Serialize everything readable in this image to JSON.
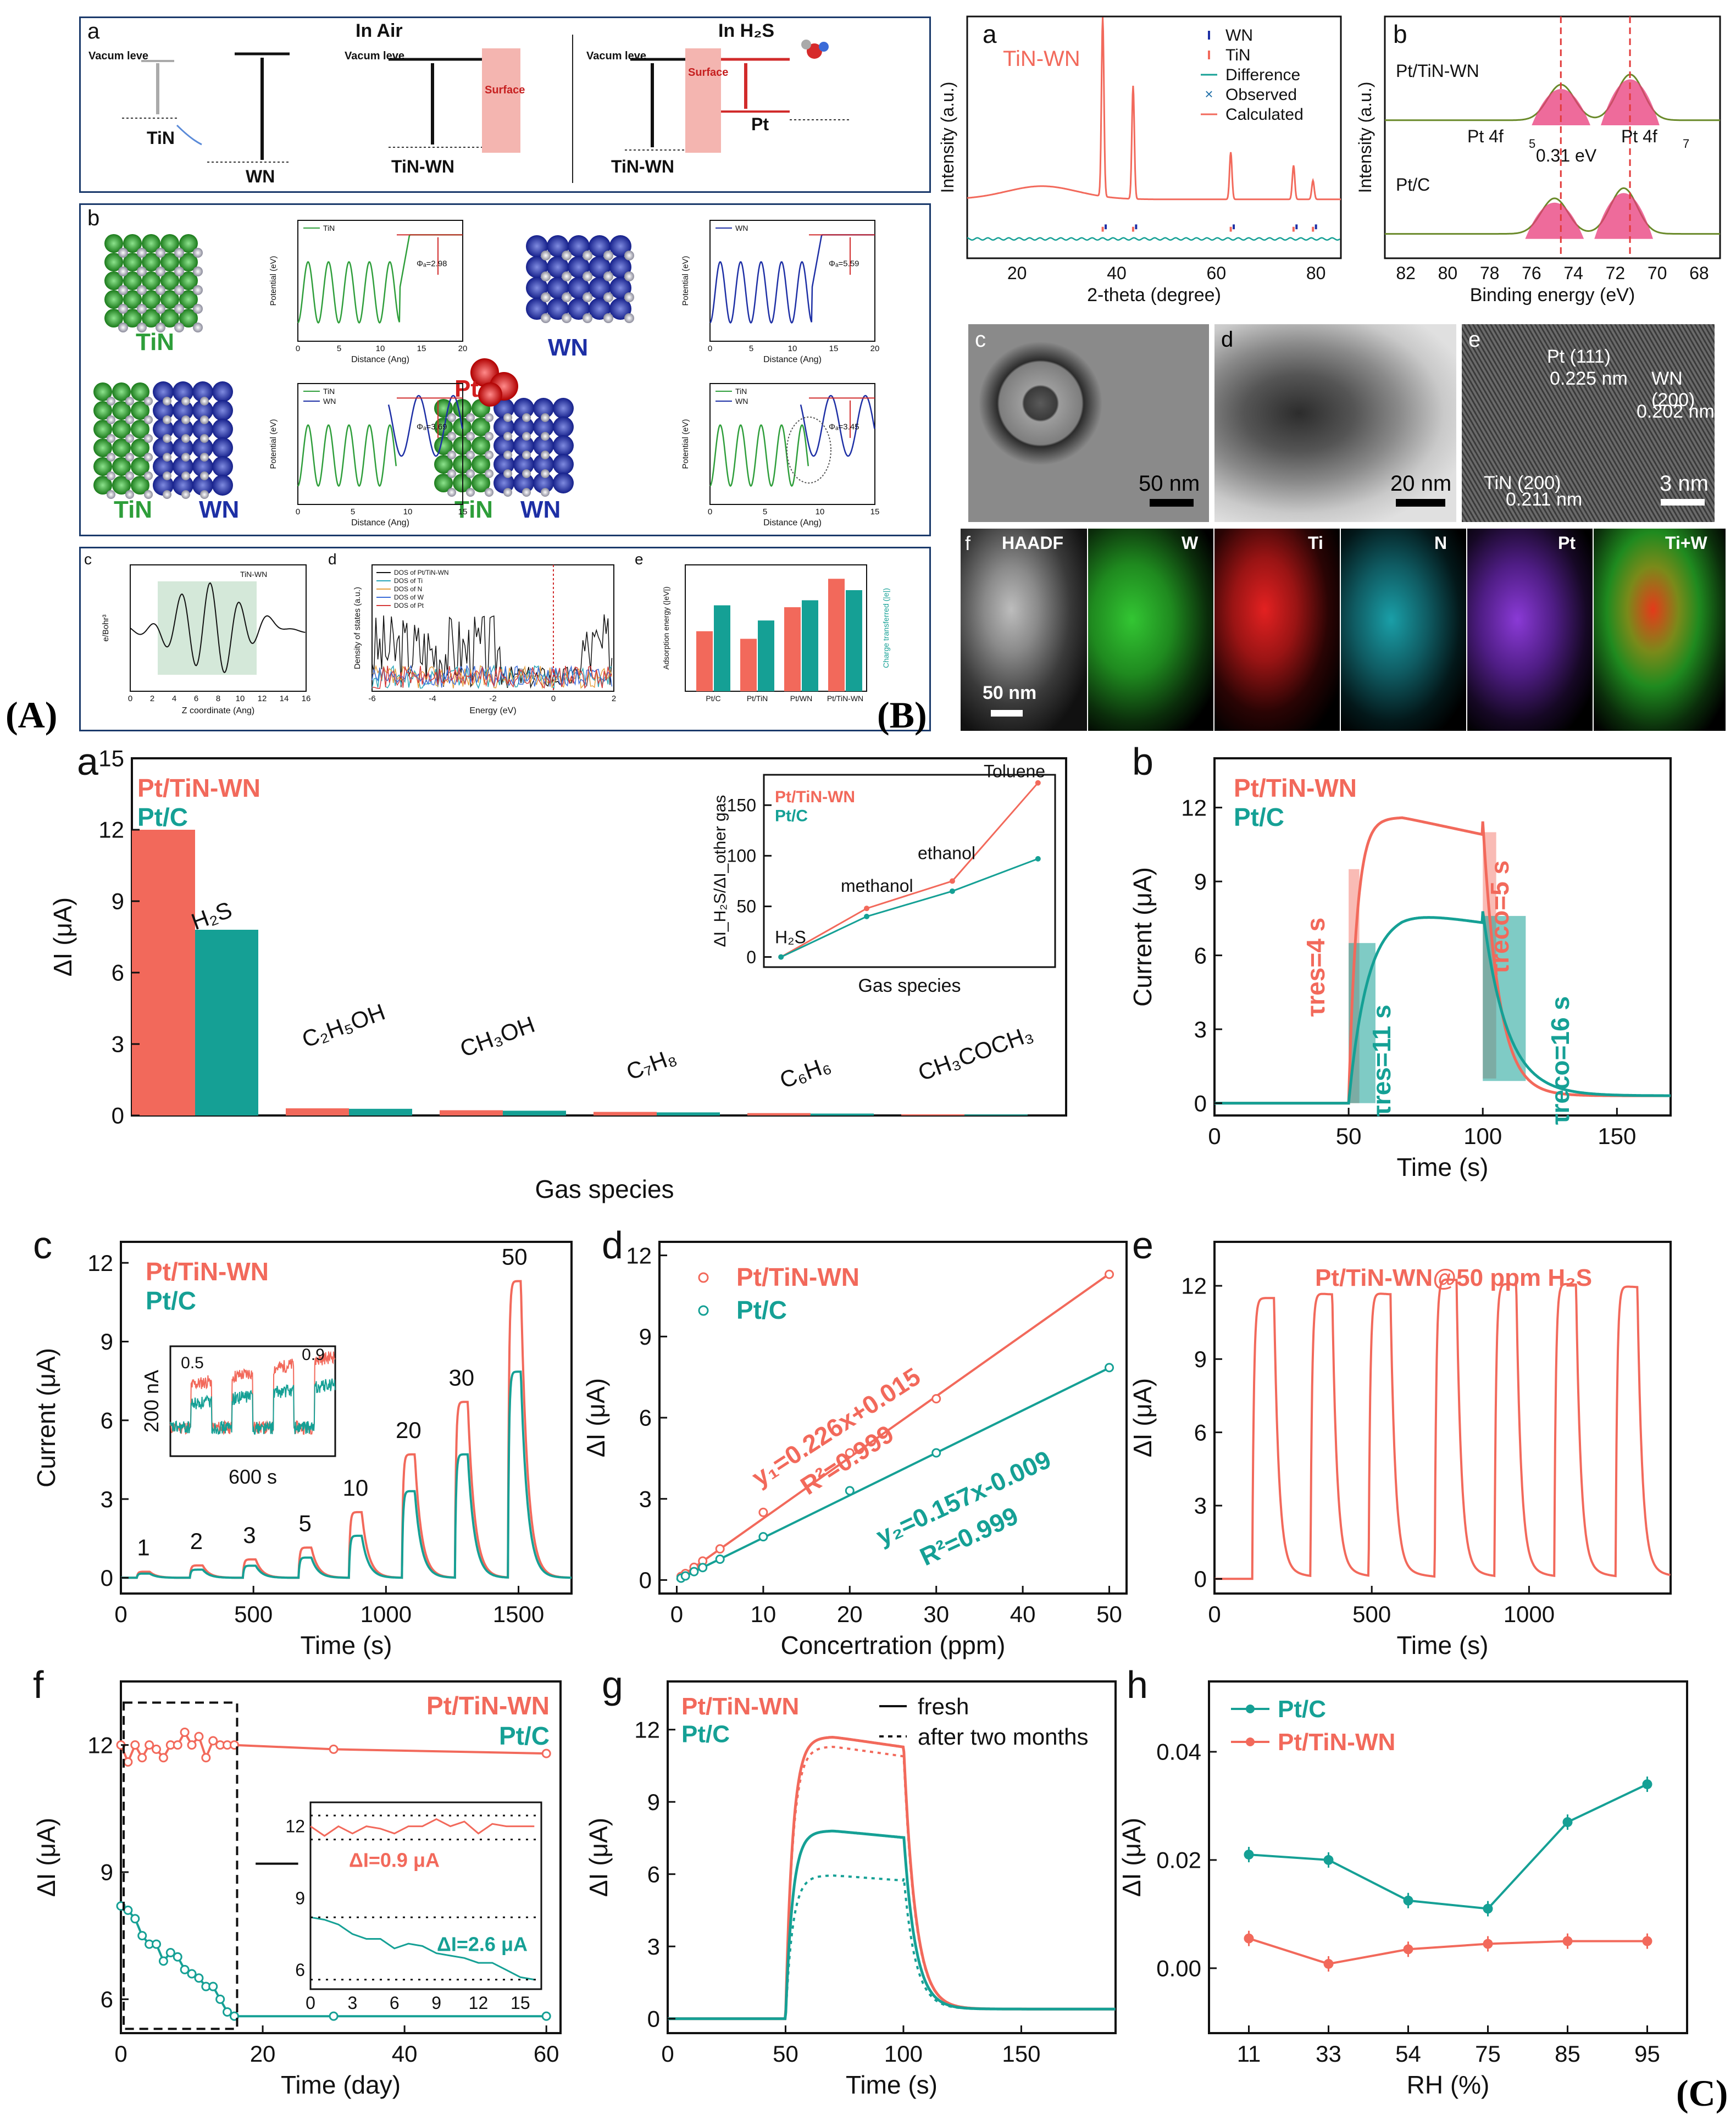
{
  "figure_labels": {
    "A": "(A)",
    "B": "(B)",
    "C": "(C)"
  },
  "colors": {
    "red": "#f2695b",
    "teal": "#15a095",
    "navy": "#1b3a6b",
    "green": "#2e9e3a",
    "blue": "#1d2fa5"
  },
  "panelA": {
    "a": {
      "label": "a",
      "in_air": "In Air",
      "in_h2s": "In H₂S",
      "vacuum": "Vacum leve",
      "ef": "E",
      "ef_sub": "f",
      "tin": "TiN",
      "wn": "WN",
      "tinwn": "TiN-WN",
      "surface": "Surface",
      "pt": "Pt"
    },
    "b": {
      "label": "b",
      "tin": "TiN",
      "wn": "WN",
      "pt": "Pt",
      "ylab": "Potential (eV)",
      "xlab": "Distance (Ang)",
      "phi": [
        "Φₐ=2.98",
        "Φₐ=5.59",
        "Φₐ=3.69",
        "Φₐ=3.45"
      ],
      "legend": [
        "TiN",
        "WN"
      ]
    },
    "c": {
      "label": "c",
      "legend": "TiN-WN",
      "ylab": "e/Bohr³",
      "xlab": "Z coordinate (Ang)",
      "xticks": [
        "0",
        "2",
        "4",
        "6",
        "8",
        "10",
        "12",
        "14",
        "16"
      ]
    },
    "d": {
      "label": "d",
      "legend": [
        "DOS of Pt/TiN-WN",
        "DOS of Ti",
        "DOS of N",
        "DOS of W",
        "DOS of Pt"
      ],
      "ylab": "Density of states (a.u.)",
      "xlab": "Energy (eV)",
      "xticks": [
        "-6",
        "-4",
        "-2",
        "0",
        "2"
      ]
    },
    "e": {
      "label": "e",
      "ylab": "Adsorption energy (|eV|)",
      "y2lab": "Charge transferred (|e|)",
      "cats": [
        "Pt/C",
        "Pt/TiN",
        "Pt/WN",
        "Pt/TiN-WN"
      ]
    }
  },
  "panelB": {
    "a": {
      "label": "a",
      "title": "TiN-WN",
      "legend": [
        "WN",
        "TiN",
        "Difference",
        "Observed",
        "Calculated"
      ],
      "ylab": "Intensity (a.u.)",
      "xlab": "2-theta (degree)",
      "xticks": [
        "20",
        "40",
        "60",
        "80"
      ]
    },
    "b": {
      "label": "b",
      "s1": "Pt/TiN-WN",
      "s2": "Pt/C",
      "pk1": "Pt 4f",
      "pk1sub": "5",
      "pk2": "Pt 4f",
      "pk2sub": "7",
      "shift": "0.31 eV",
      "ylab": "Intensity (a.u.)",
      "xlab": "Binding energy (eV)",
      "xticks": [
        "82",
        "80",
        "78",
        "76",
        "74",
        "72",
        "70",
        "68"
      ]
    },
    "c": {
      "label": "c",
      "scale": "50 nm"
    },
    "d": {
      "label": "d",
      "scale": "20 nm"
    },
    "e": {
      "label": "e",
      "scale": "3 nm",
      "ann1": "Pt (111)",
      "ann1b": "0.225 nm",
      "ann2": "WN (200)",
      "ann2b": "0.202 nm",
      "ann3": "TiN (200)",
      "ann3b": "0.211 nm"
    },
    "f": {
      "label": "f",
      "maps": [
        "HAADF",
        "W",
        "Ti",
        "N",
        "Pt",
        "Ti+W"
      ],
      "scale": "50 nm"
    }
  },
  "panelC": {
    "a": {
      "label": "a",
      "s1": "Pt/TiN-WN",
      "s2": "Pt/C",
      "ylab": "ΔI (μA)",
      "xlab": "Gas species",
      "yticks": [
        "0",
        "3",
        "6",
        "9",
        "12",
        "15"
      ],
      "gases": [
        "H₂S",
        "C₂H₅OH",
        "CH₃OH",
        "C₇H₈",
        "C₆H₆",
        "CH₃COCH₃"
      ],
      "inset": {
        "ylab": "ΔI_H₂S/ΔI_other gas",
        "xlab": "Gas species",
        "points": [
          "H₂S",
          "methanol",
          "ethanol",
          "Toluene"
        ],
        "yticks": [
          "0",
          "50",
          "100",
          "150"
        ]
      }
    },
    "b": {
      "label": "b",
      "s1": "Pt/TiN-WN",
      "s2": "Pt/C",
      "ylab": "Current (μA)",
      "xlab": "Time (s)",
      "xticks": [
        "0",
        "50",
        "100",
        "150"
      ],
      "yticks": [
        "0",
        "3",
        "6",
        "9",
        "12"
      ],
      "tres1": "τres=4 s",
      "treco1": "τreco=5 s",
      "tres2": "τres=11 s",
      "treco2": "τreco=16 s"
    },
    "c": {
      "label": "c",
      "s1": "Pt/TiN-WN",
      "s2": "Pt/C",
      "ylab": "Current (μA)",
      "xlab": "Time (s)",
      "xticks": [
        "0",
        "500",
        "1000",
        "1500"
      ],
      "yticks": [
        "0",
        "3",
        "6",
        "9",
        "12"
      ],
      "concs": [
        "1",
        "2",
        "3",
        "5",
        "10",
        "20",
        "30",
        "50"
      ],
      "inset_y": "200 nA",
      "inset_x": "600 s",
      "inset_a": "0.5",
      "inset_b": "0.9"
    },
    "d": {
      "label": "d",
      "s1": "Pt/TiN-WN",
      "s2": "Pt/C",
      "ylab": "ΔI (μA)",
      "xlab": "Concertration (ppm)",
      "xticks": [
        "0",
        "10",
        "20",
        "30",
        "40",
        "50"
      ],
      "yticks": [
        "0",
        "3",
        "6",
        "9",
        "12"
      ],
      "eq1": "y₁=0.226x+0.015",
      "r1": "R²=0.999",
      "eq2": "y₂=0.157x-0.009",
      "r2": "R²=0.999"
    },
    "e": {
      "label": "e",
      "title": "Pt/TiN-WN@50 ppm H₂S",
      "ylab": "ΔI (μA)",
      "xlab": "Time (s)",
      "xticks": [
        "0",
        "500",
        "1000"
      ],
      "yticks": [
        "0",
        "3",
        "6",
        "9",
        "12"
      ]
    },
    "f": {
      "label": "f",
      "s1": "Pt/TiN-WN",
      "s2": "Pt/C",
      "ylab": "ΔI (μA)",
      "xlab": "Time (day)",
      "xticks": [
        "0",
        "20",
        "40",
        "60"
      ],
      "yticks": [
        "6",
        "9",
        "12"
      ],
      "d1": "ΔI=0.9 μA",
      "d2": "ΔI=2.6 μA",
      "inset_x": [
        "0",
        "3",
        "6",
        "9",
        "12",
        "15"
      ],
      "inset_y": [
        "6",
        "9",
        "12"
      ]
    },
    "g": {
      "label": "g",
      "s1": "Pt/TiN-WN",
      "s2": "Pt/C",
      "fresh": "fresh",
      "old": "after two months",
      "ylab": "ΔI (μA)",
      "xlab": "Time (s)",
      "xticks": [
        "0",
        "50",
        "100",
        "150"
      ],
      "yticks": [
        "0",
        "3",
        "6",
        "9",
        "12"
      ]
    },
    "h": {
      "label": "h",
      "s1": "Pt/C",
      "s2": "Pt/TiN-WN",
      "ylab": "ΔI (μA)",
      "xlab": "RH (%)",
      "xticks": [
        "11",
        "33",
        "54",
        "75",
        "85",
        "95"
      ],
      "yticks": [
        "0.00",
        "0.02",
        "0.04"
      ]
    }
  },
  "chart_data": [
    {
      "type": "bar",
      "id": "C-a",
      "title": "",
      "categories": [
        "H₂S",
        "C₂H₅OH",
        "CH₃OH",
        "C₇H₈",
        "C₆H₆",
        "CH₃COCH₃"
      ],
      "series": [
        {
          "name": "Pt/TiN-WN",
          "values": [
            12.0,
            0.3,
            0.22,
            0.15,
            0.1,
            0.05
          ]
        },
        {
          "name": "Pt/C",
          "values": [
            7.8,
            0.28,
            0.2,
            0.13,
            0.08,
            0.04
          ]
        }
      ],
      "xlabel": "Gas species",
      "ylabel": "ΔI (μA)",
      "ylim": [
        0,
        15
      ]
    },
    {
      "type": "line",
      "id": "C-a-inset",
      "categories": [
        "H₂S",
        "methanol",
        "ethanol",
        "Toluene"
      ],
      "series": [
        {
          "name": "Pt/TiN-WN",
          "values": [
            0,
            48,
            75,
            172
          ]
        },
        {
          "name": "Pt/C",
          "values": [
            0,
            40,
            65,
            97
          ]
        }
      ],
      "xlabel": "Gas species",
      "ylabel": "ΔI_H₂S/ΔI_other gas",
      "ylim": [
        -10,
        180
      ]
    },
    {
      "type": "scatter",
      "id": "C-d",
      "x": [
        0.5,
        1,
        2,
        3,
        5,
        10,
        20,
        30,
        50
      ],
      "series": [
        {
          "name": "Pt/TiN-WN",
          "values": [
            0.13,
            0.24,
            0.47,
            0.7,
            1.15,
            2.5,
            4.7,
            6.7,
            11.3
          ]
        },
        {
          "name": "Pt/C",
          "values": [
            0.07,
            0.15,
            0.31,
            0.46,
            0.77,
            1.6,
            3.3,
            4.7,
            7.85
          ]
        }
      ],
      "fits": [
        {
          "slope": 0.226,
          "intercept": 0.015
        },
        {
          "slope": 0.157,
          "intercept": -0.009
        }
      ],
      "xlabel": "Concertration (ppm)",
      "ylabel": "ΔI (μA)",
      "xlim": [
        -2,
        52
      ],
      "ylim": [
        -0.5,
        12.5
      ]
    },
    {
      "type": "line",
      "id": "C-f",
      "x": [
        0,
        1,
        2,
        3,
        4,
        5,
        6,
        7,
        8,
        9,
        10,
        11,
        12,
        13,
        14,
        15,
        16,
        30,
        60
      ],
      "series": [
        {
          "name": "Pt/TiN-WN",
          "values": [
            12,
            11.6,
            12,
            11.7,
            12,
            11.9,
            11.7,
            12,
            12,
            12.3,
            12,
            12.2,
            11.7,
            12.1,
            12,
            12,
            12,
            11.9,
            11.8
          ]
        },
        {
          "name": "Pt/C",
          "values": [
            8.2,
            8.1,
            7.9,
            7.5,
            7.3,
            7.3,
            6.9,
            7.1,
            7.0,
            6.7,
            6.6,
            6.5,
            6.3,
            6.3,
            6.0,
            5.7,
            5.6,
            5.6,
            5.6
          ]
        }
      ],
      "xlabel": "Time (day)",
      "ylabel": "ΔI (μA)",
      "ylim": [
        5.2,
        13.5
      ]
    },
    {
      "type": "line",
      "id": "C-h",
      "categories": [
        "11",
        "33",
        "54",
        "75",
        "85",
        "95"
      ],
      "series": [
        {
          "name": "Pt/C",
          "values": [
            0.021,
            0.02,
            0.0125,
            0.011,
            0.027,
            0.034
          ]
        },
        {
          "name": "Pt/TiN-WN",
          "values": [
            0.0055,
            0.0008,
            0.0035,
            0.0045,
            0.005,
            0.005
          ]
        }
      ],
      "xlabel": "RH (%)",
      "ylabel": "ΔI (μA)",
      "ylim": [
        -0.012,
        0.053
      ]
    },
    {
      "type": "bar",
      "id": "A-e",
      "categories": [
        "Pt/C",
        "Pt/TiN",
        "Pt/WN",
        "Pt/TiN-WN"
      ],
      "series": [
        {
          "name": "Adsorption energy",
          "values": [
            0.95,
            0.83,
            1.33,
            1.78
          ]
        },
        {
          "name": "Charge transferred",
          "values": [
            0.17,
            0.14,
            0.18,
            0.2
          ]
        }
      ],
      "ylabel": "Adsorption energy (|eV|)"
    }
  ]
}
